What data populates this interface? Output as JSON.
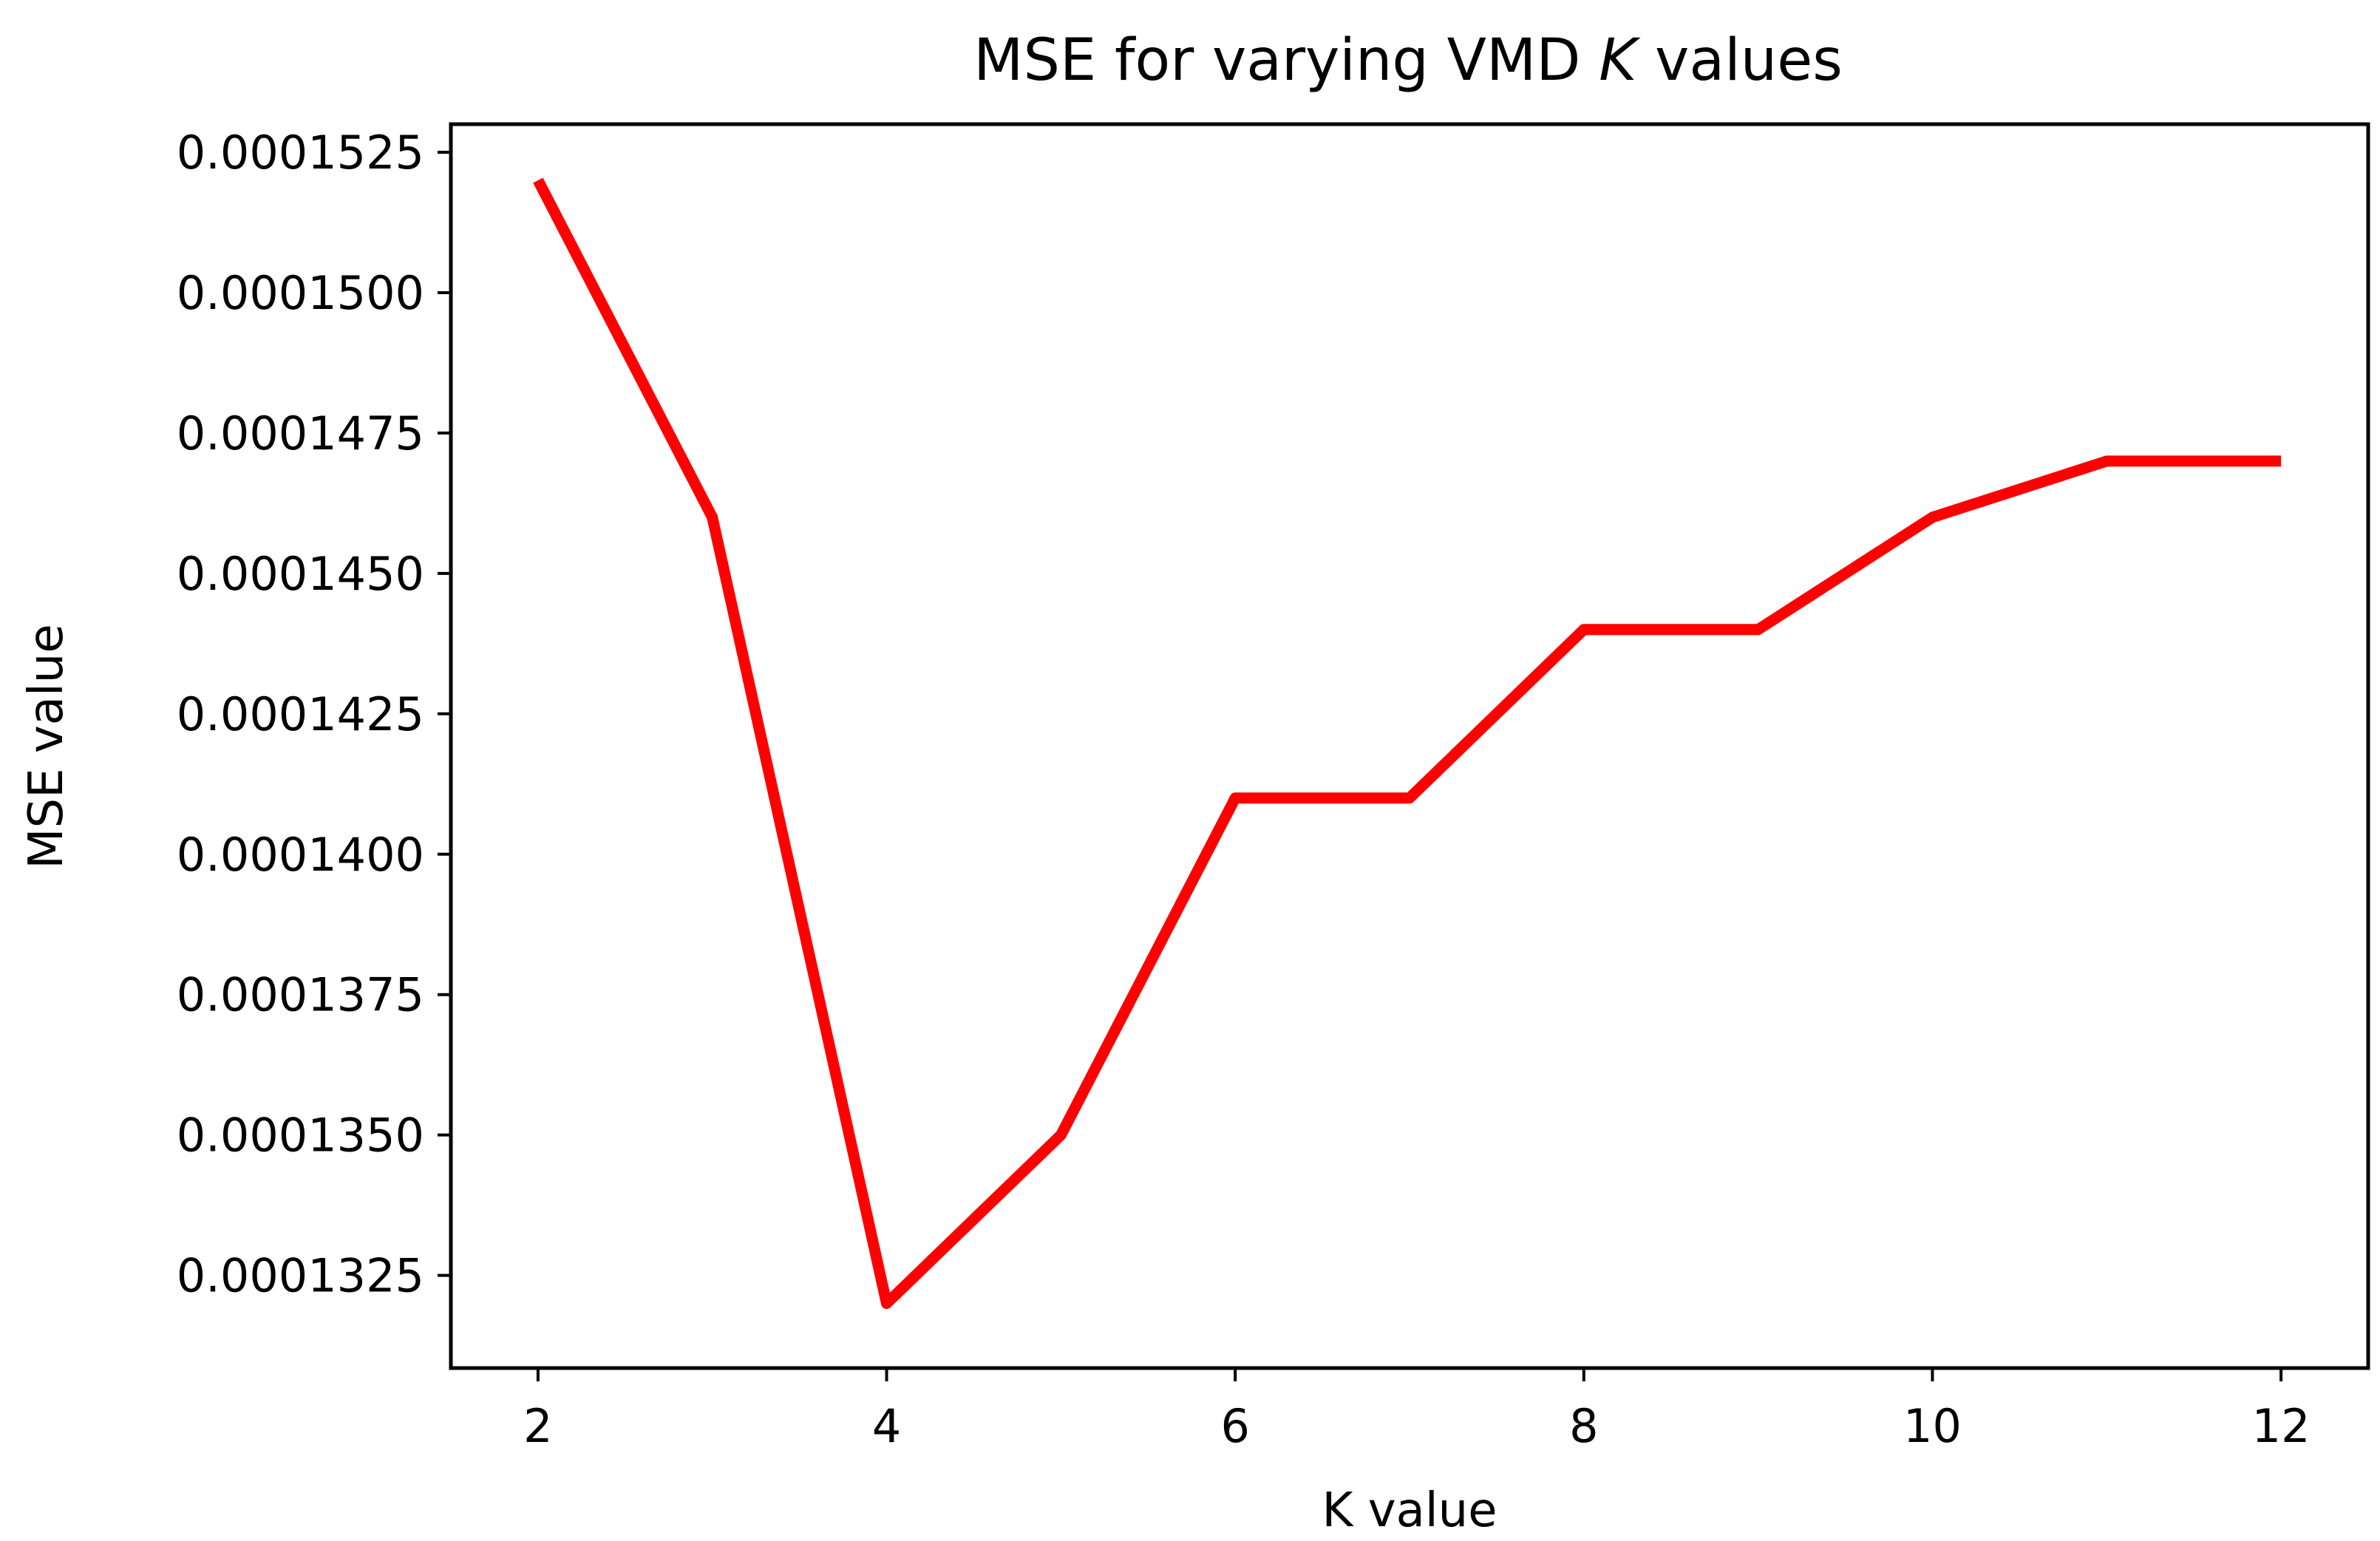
{
  "chart_data": {
    "type": "line",
    "title": "MSE for varying VMD ",
    "title_italic": "K",
    "title_suffix": " values",
    "xlabel": "K value",
    "ylabel": "MSE value",
    "xlim": [
      1.5,
      12.5
    ],
    "ylim": [
      0.00013085,
      0.000153
    ],
    "xticks": [
      2,
      4,
      6,
      8,
      10,
      12
    ],
    "xtick_labels": [
      "2",
      "4",
      "6",
      "8",
      "10",
      "12"
    ],
    "yticks": [
      0.0001325,
      0.000135,
      0.0001375,
      0.00014,
      0.0001425,
      0.000145,
      0.0001475,
      0.00015,
      0.0001525
    ],
    "ytick_labels": [
      "0.0001325",
      "0.0001350",
      "0.0001375",
      "0.0001400",
      "0.0001425",
      "0.0001450",
      "0.0001475",
      "0.0001500",
      "0.0001525"
    ],
    "grid": false,
    "series": [
      {
        "name": "MSE",
        "color": "#ff0000",
        "x": [
          2,
          3,
          4,
          5,
          6,
          7,
          8,
          9,
          10,
          11,
          12
        ],
        "y": [
          0.000152,
          0.000146,
          0.000132,
          0.000135,
          0.000141,
          0.000141,
          0.000144,
          0.000144,
          0.000146,
          0.000147,
          0.000147
        ]
      }
    ]
  }
}
